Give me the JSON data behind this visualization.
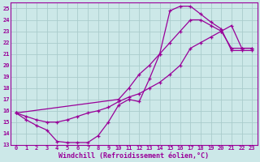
{
  "background_color": "#cce8e8",
  "grid_color": "#aacccc",
  "line_color": "#990099",
  "xlabel": "Windchill (Refroidissement éolien,°C)",
  "xlim": [
    -0.5,
    23.5
  ],
  "ylim": [
    13,
    25.5
  ],
  "yticks": [
    13,
    14,
    15,
    16,
    17,
    18,
    19,
    20,
    21,
    22,
    23,
    24,
    25
  ],
  "xticks": [
    0,
    1,
    2,
    3,
    4,
    5,
    6,
    7,
    8,
    9,
    10,
    11,
    12,
    13,
    14,
    15,
    16,
    17,
    18,
    19,
    20,
    21,
    22,
    23
  ],
  "curve1_x": [
    0,
    1,
    2,
    3,
    4,
    5,
    6,
    7,
    8,
    9,
    10,
    11,
    12,
    13,
    14,
    15,
    16,
    17,
    18,
    19,
    20,
    21,
    22,
    23
  ],
  "curve1_y": [
    15.8,
    15.2,
    14.7,
    14.3,
    13.3,
    13.2,
    13.2,
    13.2,
    13.8,
    15.0,
    16.5,
    17.0,
    16.8,
    18.8,
    21.0,
    24.8,
    25.2,
    25.2,
    24.5,
    23.8,
    23.2,
    21.3,
    21.3,
    21.3
  ],
  "curve2_x": [
    0,
    1,
    2,
    3,
    4,
    5,
    6,
    7,
    8,
    9,
    10,
    11,
    12,
    13,
    14,
    15,
    16,
    17,
    18,
    19,
    20,
    21,
    22,
    23
  ],
  "curve2_y": [
    15.8,
    15.5,
    15.2,
    15.0,
    15.0,
    15.2,
    15.5,
    15.8,
    16.0,
    16.3,
    16.8,
    17.2,
    17.5,
    18.0,
    18.5,
    19.2,
    20.0,
    21.5,
    22.0,
    22.5,
    23.0,
    23.5,
    21.5,
    21.5
  ],
  "curve3_x": [
    0,
    10,
    11,
    12,
    13,
    14,
    15,
    16,
    17,
    18,
    19,
    20,
    21,
    22,
    23
  ],
  "curve3_y": [
    15.8,
    17.0,
    18.0,
    19.2,
    20.0,
    21.0,
    22.0,
    23.0,
    24.0,
    24.0,
    23.5,
    23.0,
    21.5,
    21.5,
    21.5
  ]
}
